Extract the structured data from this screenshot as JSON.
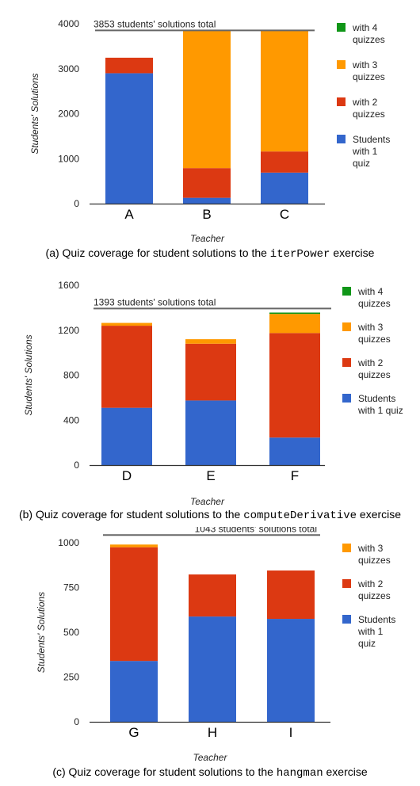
{
  "colors": {
    "q1": "#3366cc",
    "q2": "#dc3912",
    "q3": "#ff9900",
    "q4": "#109618",
    "total_line": "#666666",
    "axis": "#333333",
    "grid": "#cccccc"
  },
  "chart_data": [
    {
      "type": "bar",
      "stacked": true,
      "categories": [
        "A",
        "B",
        "C"
      ],
      "series": [
        {
          "name": "Students with 1 quiz",
          "values": [
            2900,
            130,
            690
          ]
        },
        {
          "name": "with 2 quizzes",
          "values": [
            345,
            660,
            470
          ]
        },
        {
          "name": "with 3 quizzes",
          "values": [
            0,
            3063,
            2693
          ]
        },
        {
          "name": "with 4 quizzes",
          "values": [
            0,
            0,
            0
          ]
        }
      ],
      "xlabel": "Teacher",
      "ylabel": "Students' Solutions",
      "ylim": [
        0,
        4000
      ],
      "yticks": [
        0,
        1000,
        2000,
        3000,
        4000
      ],
      "yticklabels": [
        "0",
        "1000",
        "2000",
        "3000",
        "4000"
      ],
      "total_value": 3853,
      "total_label": "3853 students' solutions total",
      "legend": [
        "with 4 quizzes",
        "with 3 quizzes",
        "with 2 quizzes",
        "Students with 1 quiz"
      ],
      "legend_position": "right",
      "grid": false,
      "caption": {
        "prefix": "(a) Quiz coverage for student solutions to the",
        "code": "iterPower",
        "suffix": "exercise"
      }
    },
    {
      "type": "bar",
      "stacked": true,
      "categories": [
        "D",
        "E",
        "F"
      ],
      "series": [
        {
          "name": "Students with 1 quiz",
          "values": [
            510,
            575,
            245
          ]
        },
        {
          "name": "with 2 quizzes",
          "values": [
            730,
            505,
            930
          ]
        },
        {
          "name": "with 3 quizzes",
          "values": [
            25,
            40,
            170
          ]
        },
        {
          "name": "with 4 quizzes",
          "values": [
            0,
            0,
            12
          ]
        }
      ],
      "xlabel": "Teacher",
      "ylabel": "Students' Solutions",
      "ylim": [
        0,
        1600
      ],
      "yticks": [
        0,
        400,
        800,
        1200,
        1600
      ],
      "yticklabels": [
        "0",
        "400",
        "800",
        "1200",
        "1600"
      ],
      "total_value": 1393,
      "total_label": "1393 students' solutions total",
      "legend": [
        "with 4 quizzes",
        "with 3 quizzes",
        "with 2 quizzes",
        "Students with 1 quiz"
      ],
      "legend_position": "right",
      "grid": false,
      "caption": {
        "prefix": "(b) Quiz coverage for student solutions to the",
        "code": "computeDerivative",
        "suffix": "exercise"
      }
    },
    {
      "type": "bar",
      "stacked": true,
      "categories": [
        "G",
        "H",
        "I"
      ],
      "series": [
        {
          "name": "Students with 1 quiz",
          "values": [
            340,
            588,
            575
          ]
        },
        {
          "name": "with 2 quizzes",
          "values": [
            635,
            235,
            270
          ]
        },
        {
          "name": "with 3 quizzes",
          "values": [
            15,
            0,
            0
          ]
        }
      ],
      "xlabel": "Teacher",
      "ylabel": "Students' Solutions",
      "ylim": [
        0,
        1000
      ],
      "yticks": [
        0,
        250,
        500,
        750,
        1000
      ],
      "yticklabels": [
        "0",
        "250",
        "500",
        "750",
        "1000"
      ],
      "total_value": 1043,
      "total_label": "1043 students' solutions total",
      "legend": [
        "with 3 quizzes",
        "with 2 quizzes",
        "Students with 1 quiz"
      ],
      "legend_position": "right",
      "grid": false,
      "caption": {
        "prefix": "(c) Quiz coverage for student solutions to the",
        "code": "hangman",
        "suffix": "exercise"
      }
    }
  ]
}
